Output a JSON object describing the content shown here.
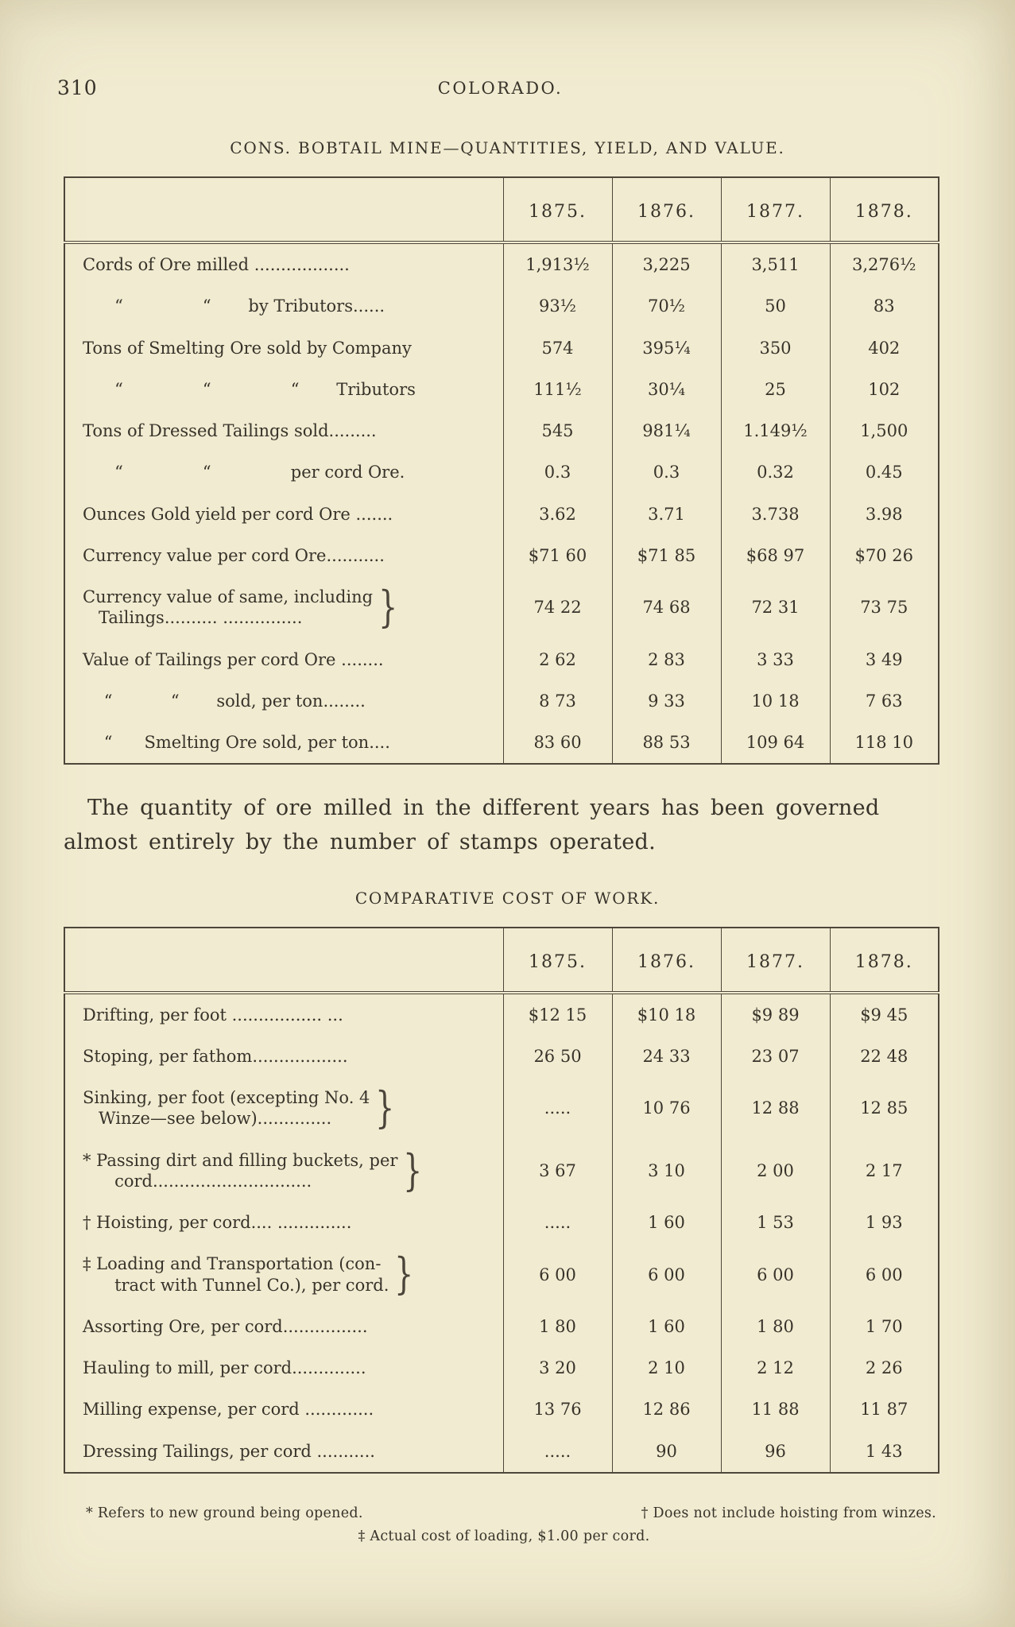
{
  "page": {
    "number": "310",
    "running_header": "COLORADO.",
    "paragraph": "The quantity of ore milled in the different years has been governed almost entirely by the number of stamps operated.",
    "paper_color": "#f1ebd1",
    "ink_color": "#37332a"
  },
  "tables": [
    {
      "title": "CONS. BOBTAIL MINE—QUANTITIES, YIELD, AND VALUE.",
      "columns": [
        "1875.",
        "1876.",
        "1877.",
        "1878."
      ],
      "rows": [
        {
          "label": "Cords of Ore milled ..................",
          "values": [
            "1,913½",
            "3,225",
            "3,511",
            "3,276½"
          ]
        },
        {
          "label": "      “               “       by Tributors......",
          "values": [
            "93½",
            "70½",
            "50",
            "83"
          ]
        },
        {
          "label": "Tons of Smelting Ore sold by Company",
          "values": [
            "574",
            "395¼",
            "350",
            "402"
          ]
        },
        {
          "label": "      “               “               “       Tributors",
          "values": [
            "111½",
            "30¼",
            "25",
            "102"
          ]
        },
        {
          "label": "Tons of Dressed Tailings sold.........",
          "values": [
            "545",
            "981¼",
            "1.149½",
            "1,500"
          ]
        },
        {
          "label": "      “               “               per cord Ore.",
          "values": [
            "0.3",
            "0.3",
            "0.32",
            "0.45"
          ]
        },
        {
          "label": "Ounces Gold yield per cord Ore .......",
          "values": [
            "3.62",
            "3.71",
            "3.738",
            "3.98"
          ]
        },
        {
          "label": "Currency value per cord Ore...........",
          "values": [
            "$71 60",
            "$71 85",
            "$68 97",
            "$70 26"
          ]
        },
        {
          "label": "Currency value of same, including\n   Tailings.......... ...............",
          "brace": true,
          "values": [
            "74 22",
            "74 68",
            "72 31",
            "73 75"
          ]
        },
        {
          "label": "Value of Tailings per cord Ore ........",
          "values": [
            "2 62",
            "2 83",
            "3 33",
            "3 49"
          ]
        },
        {
          "label": "    “           “       sold, per ton........",
          "values": [
            "8 73",
            "9 33",
            "10 18",
            "7 63"
          ]
        },
        {
          "label": "    “      Smelting Ore sold, per ton....",
          "values": [
            "83 60",
            "88 53",
            "109 64",
            "118 10"
          ]
        }
      ]
    },
    {
      "title": "COMPARATIVE COST OF WORK.",
      "columns": [
        "1875.",
        "1876.",
        "1877.",
        "1878."
      ],
      "rows": [
        {
          "label": "Drifting, per foot ................. ...",
          "values": [
            "$12 15",
            "$10 18",
            "$9 89",
            "$9 45"
          ]
        },
        {
          "label": "Stoping, per fathom..................",
          "values": [
            "26 50",
            "24 33",
            "23 07",
            "22 48"
          ]
        },
        {
          "label": "Sinking, per foot (excepting No. 4\n   Winze—see below)..............",
          "brace": true,
          "values": [
            ".....",
            "10 76",
            "12 88",
            "12 85"
          ]
        },
        {
          "label": "* Passing dirt and filling buckets, per\n      cord..............................",
          "brace": true,
          "values": [
            "3 67",
            "3 10",
            "2 00",
            "2 17"
          ]
        },
        {
          "label": "† Hoisting, per cord.... ..............",
          "values": [
            ".....",
            "1 60",
            "1 53",
            "1 93"
          ]
        },
        {
          "label": "‡ Loading and Transportation (con-\n      tract with Tunnel Co.), per cord.",
          "brace": true,
          "values": [
            "6 00",
            "6 00",
            "6 00",
            "6 00"
          ]
        },
        {
          "label": "Assorting Ore, per cord................",
          "values": [
            "1 80",
            "1 60",
            "1 80",
            "1 70"
          ]
        },
        {
          "label": "Hauling to mill, per cord..............",
          "values": [
            "3 20",
            "2 10",
            "2 12",
            "2 26"
          ]
        },
        {
          "label": "Milling expense, per cord .............",
          "values": [
            "13 76",
            "12 86",
            "11 88",
            "11 87"
          ]
        },
        {
          "label": "Dressing Tailings, per cord ...........",
          "values": [
            ".....",
            "90",
            "96",
            "1 43"
          ]
        }
      ]
    }
  ],
  "footnotes": {
    "note_asterisk": "* Refers to new ground being opened.",
    "note_dagger": "† Does not include hoisting from winzes.",
    "note_double_dagger": "‡ Actual cost of loading, $1.00 per cord."
  }
}
